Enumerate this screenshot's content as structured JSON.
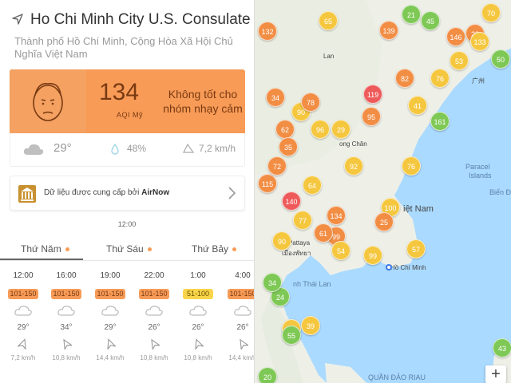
{
  "station": {
    "name": "Ho Chi Minh City U.S. Consulate",
    "address": "Thành phố Hồ Chí Minh, Cộng Hòa Xã Hội Chủ Nghĩa Việt Nam"
  },
  "aqi": {
    "value": "134",
    "unit": "AQI Mỹ",
    "status": "Không tốt cho nhóm nhạy cảm",
    "color": "#f79b57"
  },
  "weather": {
    "temperature": "29°",
    "humidity": "48%",
    "wind": "7,2 km/h"
  },
  "source": {
    "label": "Dữ liệu được cung cấp bởi",
    "provider": "AirNow"
  },
  "forecast": {
    "current_time": "12:00",
    "days": [
      "Thứ Năm",
      "Thứ Sáu",
      "Thứ Bảy"
    ],
    "hours": [
      {
        "time": "12:00",
        "aqi": "101-150",
        "temp": "29°",
        "wind": "7,2 km/h",
        "level": "o"
      },
      {
        "time": "16:00",
        "aqi": "101-150",
        "temp": "34°",
        "wind": "10,8 km/h",
        "level": "o"
      },
      {
        "time": "19:00",
        "aqi": "101-150",
        "temp": "29°",
        "wind": "14,4 km/h",
        "level": "o"
      },
      {
        "time": "22:00",
        "aqi": "101-150",
        "temp": "26°",
        "wind": "10,8 km/h",
        "level": "o"
      },
      {
        "time": "1:00",
        "aqi": "51-100",
        "temp": "26°",
        "wind": "10,8 km/h",
        "level": "y"
      },
      {
        "time": "4:00",
        "aqi": "101-150",
        "temp": "26°",
        "wind": "14,4 km/h",
        "level": "o"
      }
    ]
  },
  "map": {
    "labels": {
      "quang_chau": "广州",
      "hong_chan": "ong Chăn",
      "viet_nam": "iệt Nam",
      "pattaya": "Pattaya",
      "pattaya_thai": "เมืองพัทยา",
      "thai_lan": "nh Thái Lan",
      "ho_chi_minh": "Hồ Chí Minh",
      "paracel": "Paracel",
      "islands": "Islands",
      "bien_dong": "Biển Đô",
      "quan_dao_riau": "QUẦN ĐẢO RIAU",
      "lan": "Lan"
    },
    "pins": [
      "65",
      "132",
      "139",
      "70",
      "21",
      "45",
      "146",
      "28",
      "50",
      "133",
      "53",
      "76",
      "82",
      "41",
      "161",
      "119",
      "95",
      "90",
      "96",
      "29",
      "62",
      "76",
      "115",
      "140",
      "134",
      "99",
      "100",
      "90",
      "54",
      "99",
      "57",
      "58",
      "39",
      "24",
      "43",
      "20",
      "55",
      "34",
      "77",
      "61",
      "78",
      "34",
      "35",
      "72",
      "64",
      "92",
      "25"
    ],
    "zoom_label": "+"
  }
}
